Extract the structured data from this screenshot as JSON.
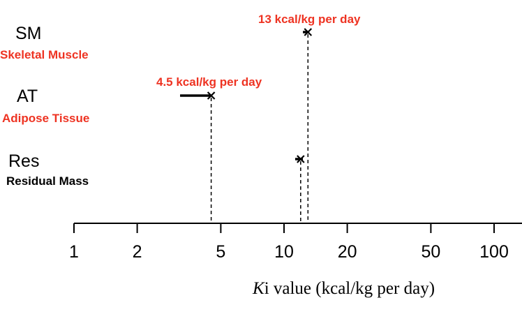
{
  "chart_data": {
    "type": "scatter",
    "x_scale": "log",
    "xlim": [
      1,
      130
    ],
    "x_ticks": [
      1,
      2,
      5,
      10,
      20,
      50,
      100
    ],
    "x_tick_labels": [
      "1",
      "2",
      "5",
      "10",
      "20",
      "50",
      "100"
    ],
    "xlabel_italic": "K",
    "xlabel_rest": "i value (kcal/kg per day)",
    "categories": [
      {
        "abbr": "SM",
        "full": "Skeletal Muscle",
        "color": "#ee3322",
        "estimate": 13,
        "range": [
          12.3,
          13.2
        ]
      },
      {
        "abbr": "AT",
        "full": "Adipose Tissue",
        "color": "#ee3322",
        "estimate": 4.5,
        "range": [
          3.2,
          4.5
        ]
      },
      {
        "abbr": "Res",
        "full": "Residual Mass",
        "color": "#000000",
        "estimate": 12,
        "range": [
          11.3,
          12.3
        ]
      }
    ],
    "annotations": [
      {
        "text": "13 kcal/kg per day",
        "category": "SM",
        "color": "#ee3322"
      },
      {
        "text": "4.5 kcal/kg per day",
        "category": "AT",
        "color": "#ee3322"
      }
    ]
  }
}
